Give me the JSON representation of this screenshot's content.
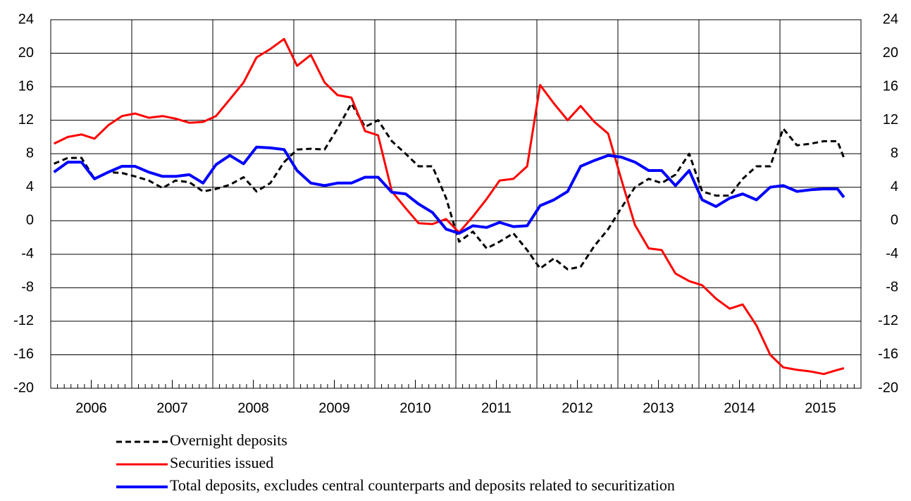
{
  "chart_data": {
    "type": "line",
    "x": [
      2006.04,
      2006.21,
      2006.38,
      2006.54,
      2006.71,
      2006.88,
      2007.04,
      2007.21,
      2007.38,
      2007.54,
      2007.71,
      2007.88,
      2008.04,
      2008.21,
      2008.38,
      2008.54,
      2008.71,
      2008.88,
      2009.04,
      2009.21,
      2009.38,
      2009.54,
      2009.71,
      2009.88,
      2010.04,
      2010.21,
      2010.38,
      2010.54,
      2010.71,
      2010.88,
      2011.04,
      2011.21,
      2011.38,
      2011.54,
      2011.71,
      2011.88,
      2012.04,
      2012.21,
      2012.38,
      2012.54,
      2012.71,
      2012.88,
      2013.04,
      2013.21,
      2013.38,
      2013.54,
      2013.71,
      2013.88,
      2014.04,
      2014.21,
      2014.38,
      2014.54,
      2014.71,
      2014.88,
      2015.04,
      2015.21,
      2015.38,
      2015.54,
      2015.71,
      2015.79
    ],
    "series": [
      {
        "name": "Overnight deposits",
        "color": "#000000",
        "dashed": true,
        "width": 3,
        "values": [
          6.8,
          7.5,
          7.5,
          5,
          5.8,
          5.7,
          5.3,
          4.8,
          3.9,
          4.8,
          4.6,
          3.5,
          3.8,
          4.3,
          5.2,
          3.5,
          4.5,
          7,
          8.5,
          8.6,
          8.5,
          11,
          14,
          11.2,
          12,
          9.5,
          8,
          6.5,
          6.5,
          2.7,
          -2.5,
          -1.3,
          -3.3,
          -2.5,
          -1.5,
          -3.5,
          -5.7,
          -4.5,
          -5.8,
          -5.5,
          -3,
          -1,
          1.5,
          4,
          5,
          4.5,
          5.5,
          8,
          3.5,
          3,
          3,
          5,
          6.5,
          6.5,
          11,
          9,
          9.2,
          9.5,
          9.5,
          7.5
        ]
      },
      {
        "name": "Securities issued",
        "color": "#ff0000",
        "dashed": false,
        "width": 3,
        "values": [
          9.2,
          10,
          10.3,
          9.8,
          11.4,
          12.5,
          12.8,
          12.3,
          12.5,
          12.2,
          11.7,
          11.8,
          12.5,
          14.5,
          16.5,
          19.5,
          20.5,
          21.7,
          18.5,
          19.8,
          16.5,
          15,
          14.7,
          10.7,
          10.2,
          3.5,
          1.5,
          -0.3,
          -0.4,
          0.2,
          -1.4,
          0.5,
          2.6,
          4.8,
          5,
          6.5,
          16.2,
          14,
          12,
          13.7,
          11.8,
          10.4,
          5,
          -0.5,
          -3.3,
          -3.5,
          -6.3,
          -7.2,
          -7.7,
          -9.3,
          -10.5,
          -10,
          -12.5,
          -16,
          -17.5,
          -17.8,
          -18,
          -18.3,
          -17.8,
          -17.6
        ]
      },
      {
        "name": "Total deposits, excludes central counterparts and deposits related to securitization",
        "color": "#0000ff",
        "dashed": false,
        "width": 4,
        "values": [
          5.8,
          7,
          7,
          5,
          5.8,
          6.5,
          6.5,
          5.8,
          5.3,
          5.3,
          5.5,
          4.5,
          6.7,
          7.8,
          6.8,
          8.8,
          8.7,
          8.5,
          6,
          4.5,
          4.2,
          4.5,
          4.5,
          5.2,
          5.2,
          3.4,
          3.2,
          2,
          1,
          -1,
          -1.5,
          -0.6,
          -0.8,
          -0.2,
          -0.7,
          -0.6,
          1.8,
          2.5,
          3.5,
          6.5,
          7.2,
          7.8,
          7.6,
          7,
          6,
          6,
          4.2,
          6,
          2.5,
          1.7,
          2.7,
          3.2,
          2.5,
          4,
          4.2,
          3.5,
          3.7,
          3.8,
          3.8,
          2.8
        ]
      }
    ],
    "xlim": [
      2006,
      2016
    ],
    "xticks": [
      {
        "value": 2006.5,
        "label": "2006"
      },
      {
        "value": 2007.5,
        "label": "2007"
      },
      {
        "value": 2008.5,
        "label": "2008"
      },
      {
        "value": 2009.5,
        "label": "2009"
      },
      {
        "value": 2010.5,
        "label": "2010"
      },
      {
        "value": 2011.5,
        "label": "2011"
      },
      {
        "value": 2012.5,
        "label": "2012"
      },
      {
        "value": 2013.5,
        "label": "2013"
      },
      {
        "value": 2014.5,
        "label": "2014"
      },
      {
        "value": 2015.5,
        "label": "2015"
      }
    ],
    "ylim": [
      -20,
      24
    ],
    "yticks": [
      -20,
      -16,
      -12,
      -8,
      -4,
      0,
      4,
      8,
      12,
      16,
      20,
      24
    ],
    "grid": true
  }
}
